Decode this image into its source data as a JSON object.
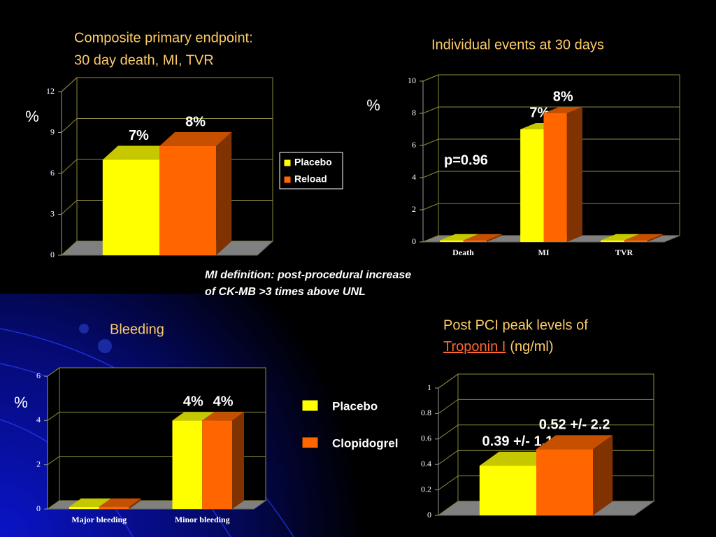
{
  "chart_data": [
    {
      "type": "bar3d",
      "title": [
        "Composite primary endpoint:",
        "30 day death, MI, TVR"
      ],
      "ylabel": "%",
      "categories": [
        null
      ],
      "ylim": [
        0,
        12
      ],
      "yticks": [
        0,
        3,
        6,
        9,
        12
      ],
      "grid": true,
      "legend": "right",
      "series": [
        {
          "name": "Placebo",
          "color": "#ffff00",
          "values": [
            7
          ],
          "value_labels": [
            "7%"
          ]
        },
        {
          "name": "Reload",
          "color": "#ff6600",
          "values": [
            8
          ],
          "value_labels": [
            "8%"
          ]
        }
      ]
    },
    {
      "type": "bar3d",
      "title": [
        "Individual events at 30 days"
      ],
      "ylabel": "%",
      "annotation": "p=0.96",
      "categories": [
        "Death",
        "MI",
        "TVR"
      ],
      "ylim": [
        0,
        10
      ],
      "yticks": [
        0,
        2,
        4,
        6,
        8,
        10
      ],
      "grid": true,
      "legend": "none",
      "series": [
        {
          "color": "#ffff00",
          "values": [
            0.1,
            7,
            0.1
          ],
          "value_labels": [
            null,
            "7%",
            null
          ]
        },
        {
          "color": "#ff6600",
          "values": [
            0.1,
            8,
            0.1
          ],
          "value_labels": [
            null,
            "8%",
            null
          ]
        }
      ]
    },
    {
      "type": "bar3d",
      "title": [
        "Bleeding"
      ],
      "ylabel": "%",
      "categories": [
        "Major bleeding",
        "Minor bleeding"
      ],
      "ylim": [
        0,
        6
      ],
      "yticks": [
        0,
        2,
        4,
        6
      ],
      "grid": true,
      "legend": "outside-right",
      "series": [
        {
          "name": "Placebo",
          "color": "#ffff00",
          "values": [
            0.1,
            4
          ],
          "value_labels": [
            null,
            "4%"
          ]
        },
        {
          "name": "Clopidogrel",
          "color": "#ff6600",
          "values": [
            0.1,
            4
          ],
          "value_labels": [
            null,
            "4%"
          ]
        }
      ]
    },
    {
      "type": "bar3d",
      "title": [
        "Post PCI peak levels of"
      ],
      "title_link": "Troponin I",
      "title_unit": "(ng/ml)",
      "categories": [
        null
      ],
      "ylim": [
        0,
        1
      ],
      "yticks": [
        0,
        0.2,
        0.4,
        0.6,
        0.8,
        1
      ],
      "grid": true,
      "legend": "none",
      "series": [
        {
          "color": "#ffff00",
          "values": [
            0.39
          ],
          "value_labels": [
            "0.39 +/- 1.1"
          ]
        },
        {
          "color": "#ff6600",
          "values": [
            0.52
          ],
          "value_labels": [
            "0.52 +/- 2.2"
          ]
        }
      ]
    }
  ],
  "note": [
    "MI definition: post-procedural increase",
    "of CK-MB >3 times above UNL"
  ]
}
